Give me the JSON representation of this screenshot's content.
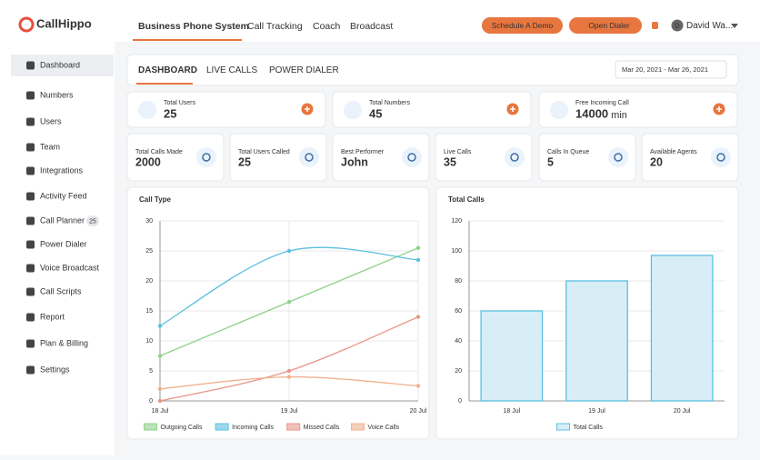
{
  "header": {
    "logo": "CallHippo",
    "nav": [
      "Business Phone System",
      "Call Tracking",
      "Coach",
      "Broadcast"
    ],
    "schedule_demo": "Schedule A Demo",
    "open_dialer": "Open Dialer",
    "user_initial": "D",
    "user_name": "David Wa..."
  },
  "sidebar": {
    "items": [
      {
        "label": "Dashboard"
      },
      {
        "label": "Numbers"
      },
      {
        "label": "Users"
      },
      {
        "label": "Team"
      },
      {
        "label": "Integrations"
      },
      {
        "label": "Activity Feed"
      },
      {
        "label": "Call Planner",
        "badge": 25
      },
      {
        "label": "Power Dialer"
      },
      {
        "label": "Voice Broadcast"
      },
      {
        "label": "Call Scripts"
      },
      {
        "label": "Report"
      },
      {
        "label": "Plan & Billing"
      },
      {
        "label": "Settings"
      }
    ]
  },
  "tabs": [
    "DASHBOARD",
    "LIVE CALLS",
    "POWER DIALER"
  ],
  "date_range": "Mar 20, 2021 - Mar 26, 2021",
  "summary_cards": [
    {
      "label": "Total Users",
      "value": 25
    },
    {
      "label": "Total Numbers",
      "value": 45
    },
    {
      "label": "Free Incoming Call",
      "value": 14000,
      "unit": "min"
    }
  ],
  "stat_cards": [
    {
      "label": "Total Calls Made",
      "value": 2000
    },
    {
      "label": "Total Users Called",
      "value": 25
    },
    {
      "label": "Best Performer",
      "value": "John"
    },
    {
      "label": "Live Calls",
      "value": 35
    },
    {
      "label": "Calls In Queue",
      "value": 5
    },
    {
      "label": "Available Agents",
      "value": 20
    }
  ],
  "chart_data": [
    {
      "type": "line",
      "title": "Call Type",
      "categories": [
        "18 Jul",
        "19 Jul",
        "20 Jul"
      ],
      "series": [
        {
          "name": "Outgoing Calls",
          "color": "#8fd18a",
          "values": [
            7.5,
            16.5,
            25.5
          ]
        },
        {
          "name": "Incoming Calls",
          "color": "#5bbfe0",
          "values": [
            12.5,
            25,
            23.5
          ]
        },
        {
          "name": "Missed Calls",
          "color": "#e8968a",
          "values": [
            0,
            5,
            14
          ]
        },
        {
          "name": "Voice Calls",
          "color": "#f0b08e",
          "values": [
            2,
            4,
            2.5
          ]
        }
      ],
      "ylim": [
        0,
        30
      ],
      "yticks": [
        0,
        5,
        10,
        15,
        20,
        25,
        30
      ],
      "grid": true
    },
    {
      "type": "bar",
      "title": "Total Calls",
      "categories": [
        "18 Jul",
        "19 Jul",
        "20 Jul"
      ],
      "series": [
        {
          "name": "Total Calls",
          "color": "#5bbfe0",
          "values": [
            60,
            80,
            97
          ]
        }
      ],
      "ylim": [
        0,
        120
      ],
      "yticks": [
        0,
        20,
        40,
        60,
        80,
        100,
        120
      ],
      "grid": true
    }
  ]
}
